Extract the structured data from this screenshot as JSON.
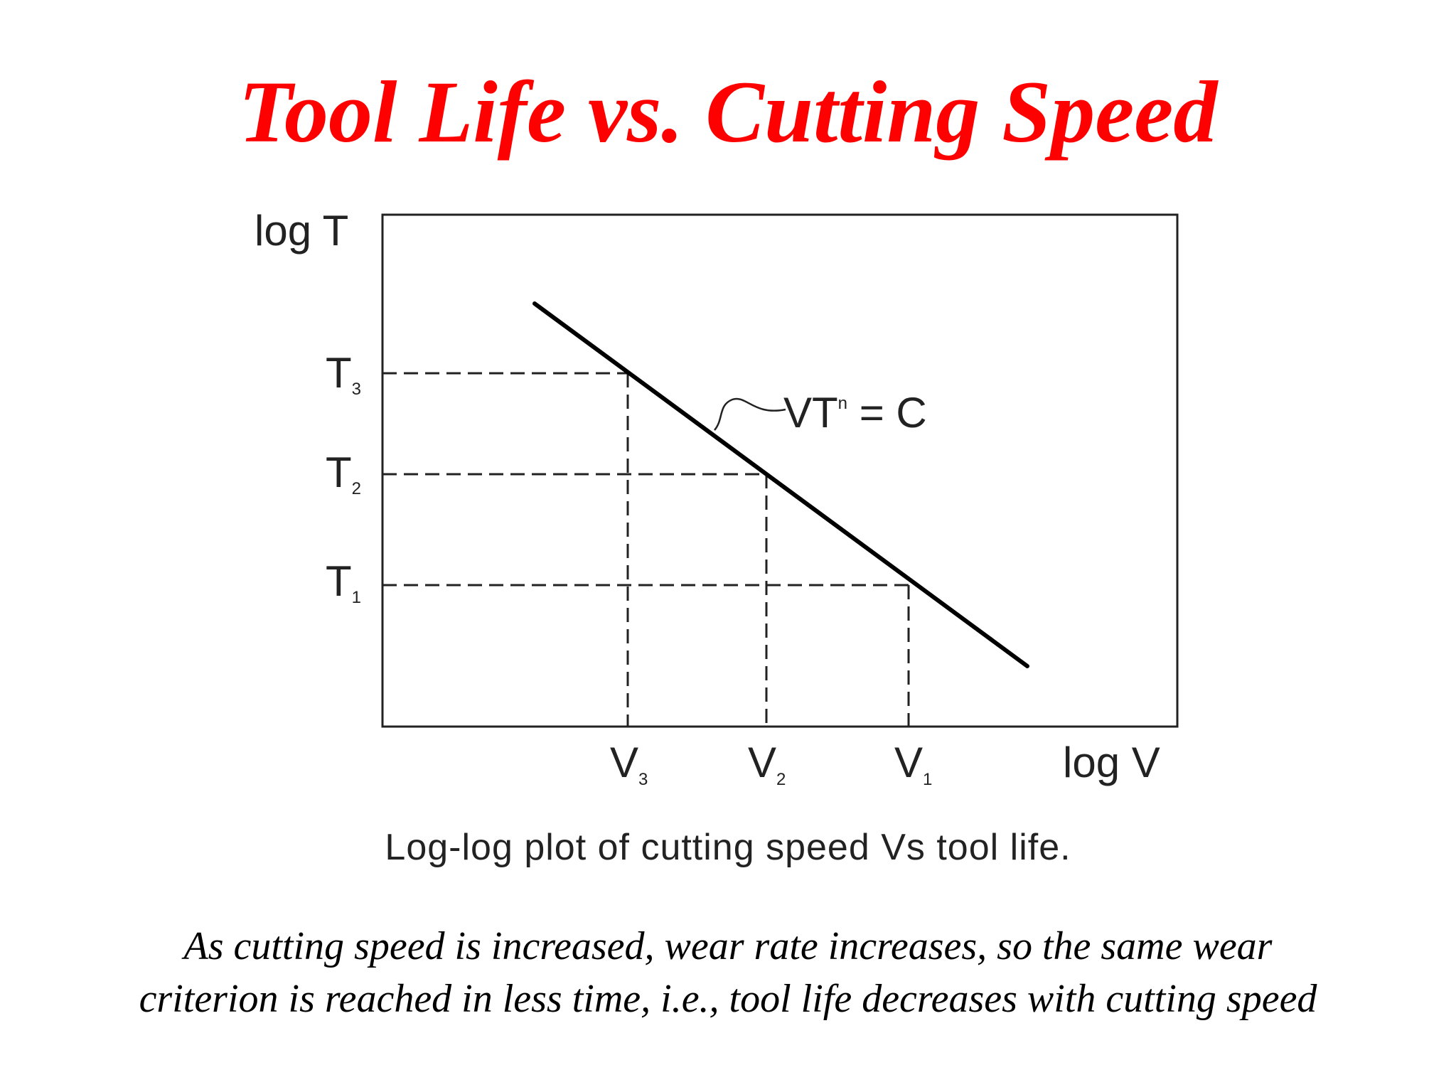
{
  "slide": {
    "title": "Tool Life vs. Cutting Speed",
    "caption": "Log-log plot of cutting speed Vs tool life.",
    "footnote_line1": "As cutting speed is increased, wear rate increases, so the same wear",
    "footnote_line2": "criterion is reached in less time, i.e., tool life decreases with cutting speed"
  },
  "diagram": {
    "y_axis_label": "log T",
    "x_axis_label": "log V",
    "equation": {
      "base": "VT",
      "exponent": "n",
      "rhs": " = C"
    },
    "t_ticks": [
      {
        "main": "T",
        "sub": "3"
      },
      {
        "main": "T",
        "sub": "2"
      },
      {
        "main": "T",
        "sub": "1"
      }
    ],
    "v_ticks": [
      {
        "main": "V",
        "sub": "3"
      },
      {
        "main": "V",
        "sub": "2"
      },
      {
        "main": "V",
        "sub": "1"
      }
    ]
  },
  "colors": {
    "title": "#ff0000",
    "line": "#000000",
    "text": "#222222"
  }
}
